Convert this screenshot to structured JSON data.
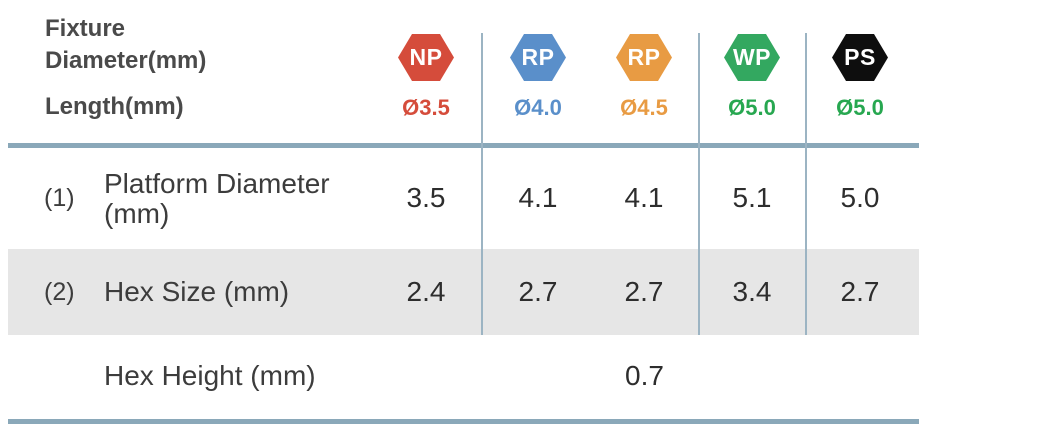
{
  "header": {
    "fixture_line1": "Fixture",
    "fixture_line2": "Diameter(mm)",
    "length_label": "Length(mm)"
  },
  "platforms": [
    {
      "code": "NP",
      "diameter": "Ø3.5",
      "hex_color": "#d54c3b",
      "diameter_text_color": "#d54c3b"
    },
    {
      "code": "RP",
      "diameter": "Ø4.0",
      "hex_color": "#5a8fca",
      "diameter_text_color": "#5a8fca"
    },
    {
      "code": "RP",
      "diameter": "Ø4.5",
      "hex_color": "#e89b43",
      "diameter_text_color": "#e89b43"
    },
    {
      "code": "WP",
      "diameter": "Ø5.0",
      "hex_color": "#33a860",
      "diameter_text_color": "#27a750"
    },
    {
      "code": "PS",
      "diameter": "Ø5.0",
      "hex_color": "#0e0e0e",
      "diameter_text_color": "#27a750"
    }
  ],
  "rows": [
    {
      "num": "(1)",
      "label_line1": "Platform Diameter",
      "label_line2": "(mm)",
      "values": [
        "3.5",
        "4.1",
        "4.1",
        "5.1",
        "5.0"
      ]
    },
    {
      "num": "(2)",
      "label_line1": "Hex Size (mm)",
      "label_line2": "",
      "values": [
        "2.4",
        "2.7",
        "2.7",
        "3.4",
        "2.7"
      ]
    },
    {
      "num": "",
      "label_line1": "Hex Height (mm)",
      "label_line2": "",
      "merged_value": "0.7"
    }
  ],
  "style": {
    "rule_color": "#8aa8b9",
    "divider_color": "#9cb4c3",
    "shaded_row_color": "#e6e6e6"
  },
  "chart_data": {
    "type": "table",
    "title": "Fixture Diameter(mm) / Length(mm)",
    "columns": [
      "NP Ø3.5",
      "RP Ø4.0",
      "RP Ø4.5",
      "WP Ø5.0",
      "PS Ø5.0"
    ],
    "rows": [
      {
        "label": "(1) Platform Diameter (mm)",
        "values": [
          3.5,
          4.1,
          4.1,
          5.1,
          5.0
        ]
      },
      {
        "label": "(2) Hex Size (mm)",
        "values": [
          2.4,
          2.7,
          2.7,
          3.4,
          2.7
        ]
      },
      {
        "label": "Hex Height (mm)",
        "values": [
          0.7
        ],
        "note": "single merged value across all platforms"
      }
    ]
  }
}
